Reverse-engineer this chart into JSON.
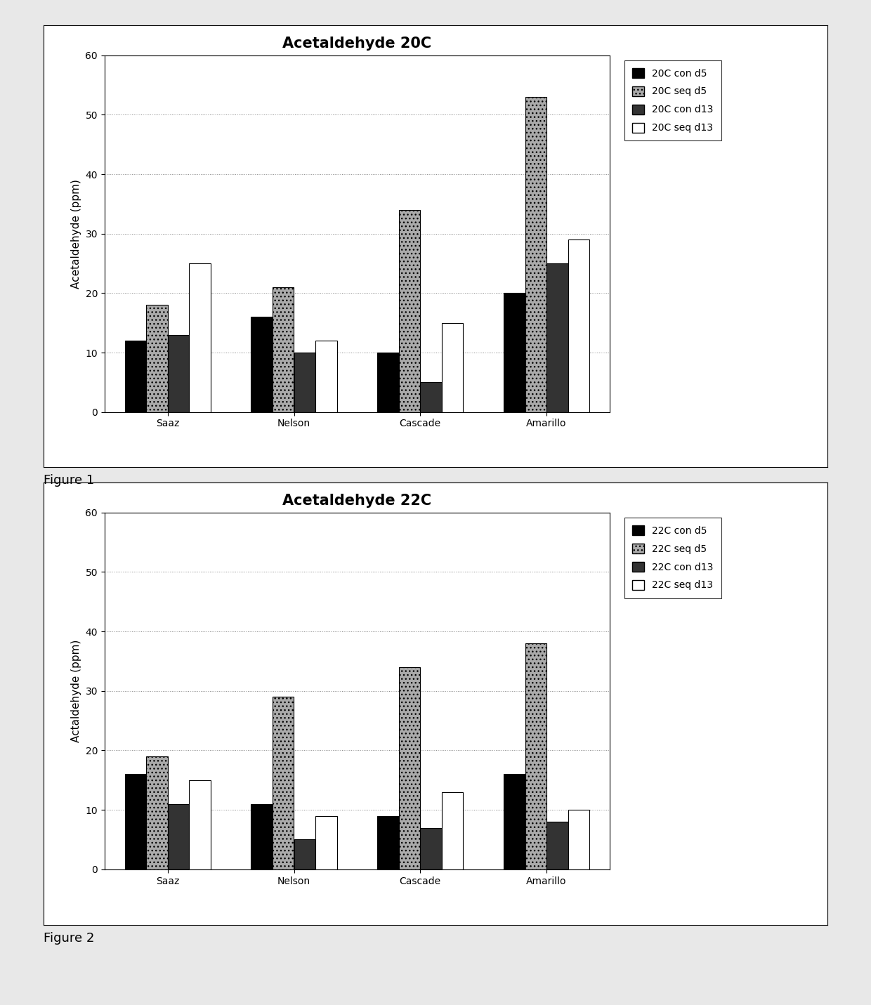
{
  "fig1": {
    "title": "Acetaldehyde 20C",
    "categories": [
      "Saaz",
      "Nelson",
      "Cascade",
      "Amarillo"
    ],
    "series": [
      {
        "label": "20C con d5",
        "color": "#000000",
        "hatch": "",
        "values": [
          12,
          16,
          10,
          20
        ]
      },
      {
        "label": "20C seq d5",
        "color": "#aaaaaa",
        "hatch": "...",
        "values": [
          18,
          21,
          34,
          53
        ]
      },
      {
        "label": "20C con d13",
        "color": "#333333",
        "hatch": "",
        "values": [
          13,
          10,
          5,
          25
        ]
      },
      {
        "label": "20C seq d13",
        "color": "#ffffff",
        "hatch": "",
        "values": [
          25,
          12,
          15,
          29
        ]
      }
    ],
    "ylabel": "Acetaldehyde (ppm)",
    "ylim": [
      0,
      60
    ],
    "yticks": [
      0,
      10,
      20,
      30,
      40,
      50,
      60
    ],
    "figure_label": "Figure 1"
  },
  "fig2": {
    "title": "Acetaldehyde 22C",
    "categories": [
      "Saaz",
      "Nelson",
      "Cascade",
      "Amarillo"
    ],
    "series": [
      {
        "label": "22C con d5",
        "color": "#000000",
        "hatch": "",
        "values": [
          16,
          11,
          9,
          16
        ]
      },
      {
        "label": "22C seq d5",
        "color": "#aaaaaa",
        "hatch": "...",
        "values": [
          19,
          29,
          34,
          38
        ]
      },
      {
        "label": "22C con d13",
        "color": "#333333",
        "hatch": "",
        "values": [
          11,
          5,
          7,
          8
        ]
      },
      {
        "label": "22C seq d13",
        "color": "#ffffff",
        "hatch": "",
        "values": [
          15,
          9,
          13,
          10
        ]
      }
    ],
    "ylabel": "Actaldehyde (ppm)",
    "ylim": [
      0,
      60
    ],
    "yticks": [
      0,
      10,
      20,
      30,
      40,
      50,
      60
    ],
    "figure_label": "Figure 2"
  },
  "bar_width": 0.17,
  "edgecolor": "#000000",
  "background_color": "#ffffff",
  "page_bg": "#e8e8e8",
  "title_fontsize": 15,
  "label_fontsize": 11,
  "tick_fontsize": 10,
  "legend_fontsize": 10,
  "figure_label_fontsize": 13
}
